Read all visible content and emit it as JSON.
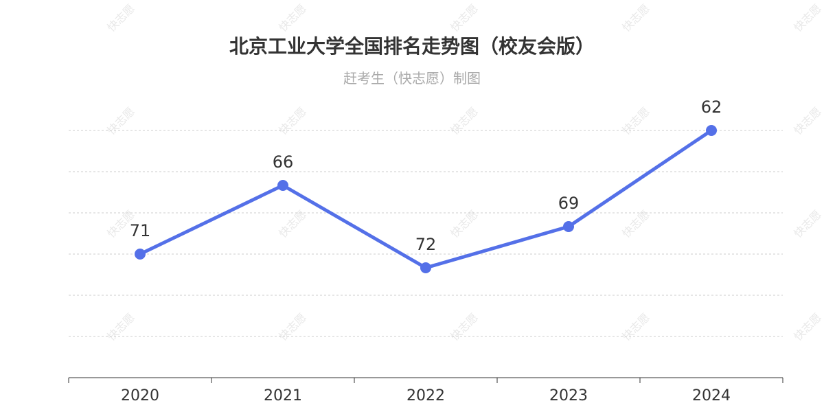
{
  "chart_data": {
    "type": "line",
    "title": "北京工业大学全国排名走势图（校友会版）",
    "subtitle": "赶考生（快志愿）制图",
    "categories": [
      "2020",
      "2021",
      "2022",
      "2023",
      "2024"
    ],
    "series": [
      {
        "values": [
          71,
          66,
          72,
          69,
          62
        ]
      }
    ],
    "y_inverted": true,
    "ylim": [
      77,
      62
    ],
    "grid": true,
    "xlabel": "",
    "ylabel": "",
    "line_color": "#5470e8"
  },
  "watermark": "快志愿"
}
